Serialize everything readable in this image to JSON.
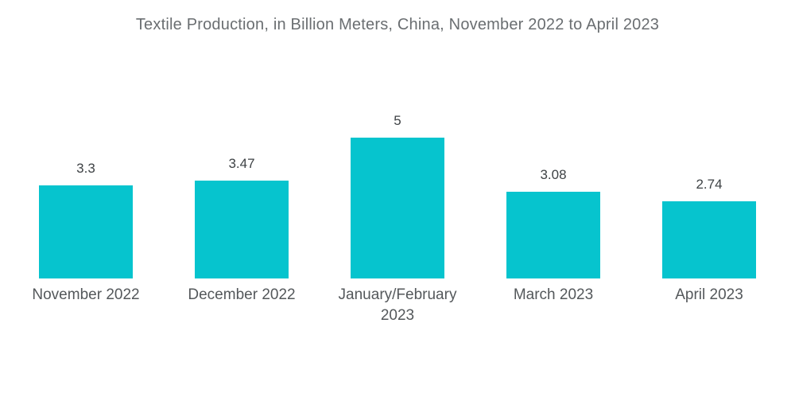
{
  "chart_data": {
    "type": "bar",
    "title": "Textile Production, in Billion Meters, China, November 2022 to April 2023",
    "categories": [
      "November 2022",
      "December 2022",
      "January/February 2023",
      "March 2023",
      "April 2023"
    ],
    "values": [
      3.3,
      3.47,
      5,
      3.08,
      2.74
    ],
    "value_labels": [
      "3.3",
      "3.47",
      "5",
      "3.08",
      "2.74"
    ],
    "xlabel": "",
    "ylabel": "",
    "ylim": [
      0,
      5
    ],
    "grid": false,
    "legend": "none",
    "bar_color": "#06c4ce",
    "title_color": "#6a6e71",
    "value_label_color": "#3e4245",
    "category_label_color": "#54585b",
    "background_color": "#ffffff"
  }
}
